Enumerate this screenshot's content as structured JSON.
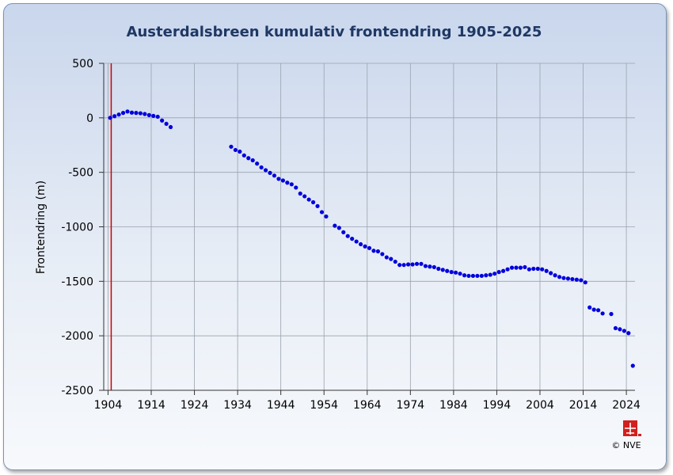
{
  "chart_data": {
    "type": "scatter",
    "title": "Austerdalsbreen  kumulativ frontendring 1905-2025",
    "xlabel": "",
    "ylabel": "Frontendring (m)",
    "xlim": [
      1903,
      2026
    ],
    "ylim": [
      -2500,
      500
    ],
    "x_ticks": [
      1904,
      1914,
      1924,
      1934,
      1944,
      1954,
      1964,
      1974,
      1984,
      1994,
      2004,
      2014,
      2024
    ],
    "y_ticks": [
      500,
      0,
      -500,
      -1000,
      -1500,
      -2000,
      -2500
    ],
    "reference_line_x": 1904,
    "marker_color": "#0000dd",
    "reference_line_color": "#cc0000",
    "grid": true,
    "points": [
      [
        1904.5,
        0
      ],
      [
        1905.5,
        15
      ],
      [
        1906.5,
        30
      ],
      [
        1907.5,
        45
      ],
      [
        1908.5,
        58
      ],
      [
        1909.5,
        48
      ],
      [
        1910.5,
        45
      ],
      [
        1911.5,
        42
      ],
      [
        1912.5,
        35
      ],
      [
        1913.5,
        25
      ],
      [
        1914.5,
        18
      ],
      [
        1915.5,
        10
      ],
      [
        1916.5,
        -25
      ],
      [
        1917.5,
        -55
      ],
      [
        1918.5,
        -85
      ],
      [
        1932.5,
        -265
      ],
      [
        1933.5,
        -295
      ],
      [
        1934.5,
        -310
      ],
      [
        1935.5,
        -345
      ],
      [
        1936.5,
        -370
      ],
      [
        1937.5,
        -390
      ],
      [
        1938.5,
        -420
      ],
      [
        1939.5,
        -455
      ],
      [
        1940.5,
        -480
      ],
      [
        1941.5,
        -505
      ],
      [
        1942.5,
        -530
      ],
      [
        1943.5,
        -560
      ],
      [
        1944.5,
        -575
      ],
      [
        1945.5,
        -595
      ],
      [
        1946.5,
        -610
      ],
      [
        1947.5,
        -640
      ],
      [
        1948.5,
        -695
      ],
      [
        1949.5,
        -720
      ],
      [
        1950.5,
        -750
      ],
      [
        1951.5,
        -775
      ],
      [
        1952.5,
        -810
      ],
      [
        1953.5,
        -865
      ],
      [
        1954.5,
        -905
      ],
      [
        1956.5,
        -990
      ],
      [
        1957.5,
        -1010
      ],
      [
        1958.5,
        -1050
      ],
      [
        1959.5,
        -1085
      ],
      [
        1960.5,
        -1110
      ],
      [
        1961.5,
        -1135
      ],
      [
        1962.5,
        -1160
      ],
      [
        1963.5,
        -1180
      ],
      [
        1964.5,
        -1195
      ],
      [
        1965.5,
        -1220
      ],
      [
        1966.5,
        -1225
      ],
      [
        1967.5,
        -1250
      ],
      [
        1968.5,
        -1280
      ],
      [
        1969.5,
        -1295
      ],
      [
        1970.5,
        -1320
      ],
      [
        1971.5,
        -1350
      ],
      [
        1972.5,
        -1350
      ],
      [
        1973.5,
        -1345
      ],
      [
        1974.5,
        -1345
      ],
      [
        1975.5,
        -1340
      ],
      [
        1976.5,
        -1340
      ],
      [
        1977.5,
        -1360
      ],
      [
        1978.5,
        -1365
      ],
      [
        1979.5,
        -1370
      ],
      [
        1980.5,
        -1385
      ],
      [
        1981.5,
        -1395
      ],
      [
        1982.5,
        -1405
      ],
      [
        1983.5,
        -1415
      ],
      [
        1984.5,
        -1420
      ],
      [
        1985.5,
        -1430
      ],
      [
        1986.5,
        -1445
      ],
      [
        1987.5,
        -1450
      ],
      [
        1988.5,
        -1450
      ],
      [
        1989.5,
        -1450
      ],
      [
        1990.5,
        -1450
      ],
      [
        1991.5,
        -1445
      ],
      [
        1992.5,
        -1440
      ],
      [
        1993.5,
        -1430
      ],
      [
        1994.5,
        -1415
      ],
      [
        1995.5,
        -1405
      ],
      [
        1996.5,
        -1390
      ],
      [
        1997.5,
        -1375
      ],
      [
        1998.5,
        -1375
      ],
      [
        1999.5,
        -1375
      ],
      [
        2000.5,
        -1370
      ],
      [
        2001.5,
        -1390
      ],
      [
        2002.5,
        -1385
      ],
      [
        2003.5,
        -1385
      ],
      [
        2004.5,
        -1390
      ],
      [
        2005.5,
        -1405
      ],
      [
        2006.5,
        -1425
      ],
      [
        2007.5,
        -1445
      ],
      [
        2008.5,
        -1460
      ],
      [
        2009.5,
        -1470
      ],
      [
        2010.5,
        -1475
      ],
      [
        2011.5,
        -1480
      ],
      [
        2012.5,
        -1485
      ],
      [
        2013.5,
        -1490
      ],
      [
        2014.5,
        -1510
      ],
      [
        2015.5,
        -1740
      ],
      [
        2016.5,
        -1760
      ],
      [
        2017.5,
        -1765
      ],
      [
        2018.5,
        -1795
      ],
      [
        2020.5,
        -1800
      ],
      [
        2021.5,
        -1930
      ],
      [
        2022.5,
        -1940
      ],
      [
        2023.5,
        -1955
      ],
      [
        2024.5,
        -1975
      ],
      [
        2025.5,
        -2275
      ]
    ]
  },
  "footer": {
    "copyright": "© NVE",
    "logo_text": "NVE"
  }
}
